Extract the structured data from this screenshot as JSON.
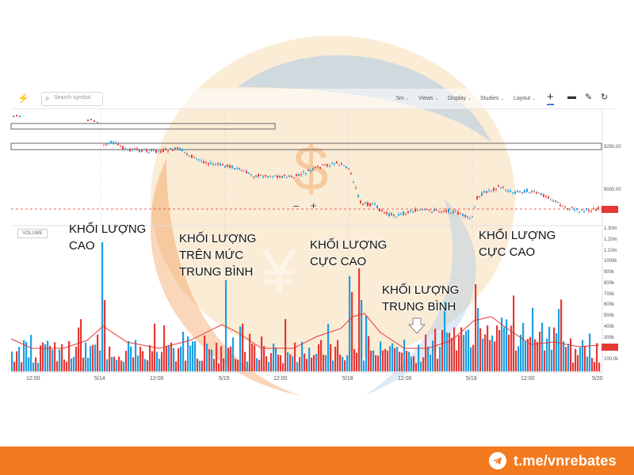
{
  "toolbar": {
    "search_placeholder": "Search symbol",
    "interval": "5m",
    "views": "Views",
    "display": "Display",
    "studies": "Studies",
    "layout": "Layout"
  },
  "chart_data": {
    "type": "candlestick+volume",
    "price_axis_labels": [
      "9250.00",
      "9000.00"
    ],
    "volume_axis_labels": [
      "1.30m",
      "1.20m",
      "1.10m",
      "1000k",
      "900k",
      "800k",
      "700k",
      "600k",
      "500k",
      "400k",
      "300k",
      "200k",
      "100.0k"
    ],
    "x_labels": [
      "12:00",
      "5/14",
      "12:00",
      "5/15",
      "12:00",
      "5/18",
      "12:00",
      "5/19",
      "12:00",
      "5/20"
    ],
    "volume_label": "VOLUME",
    "colors": {
      "up": "#1e9fe0",
      "down": "#e53935",
      "ma": "#e53935"
    }
  },
  "annotations": {
    "a1": [
      "KHỐI LƯỢNG",
      "CAO"
    ],
    "a2": [
      "KHỐI LƯỢNG",
      "TRÊN MỨC",
      "TRUNG BÌNH"
    ],
    "a3": [
      "KHỐI LƯỢNG",
      "CỰC CAO"
    ],
    "a4": [
      "KHỐI LƯỢNG",
      "TRUNG BÌNH"
    ],
    "a5": [
      "KHỐI LƯỢNG",
      "CỰC CAO"
    ]
  },
  "footer": {
    "link": "t.me/vnrebates"
  },
  "zoom": {
    "minus": "–",
    "plus": "+"
  }
}
